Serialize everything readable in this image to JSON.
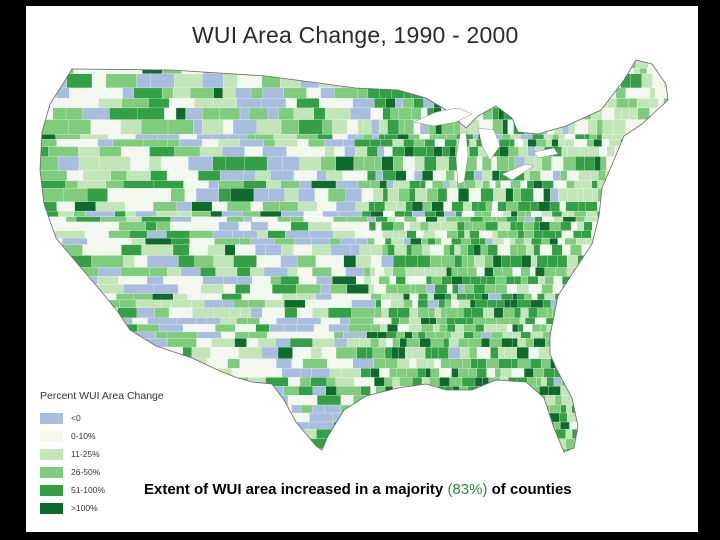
{
  "title": "WUI Area Change, 1990 - 2000",
  "legend": {
    "title": "Percent WUI Area Change",
    "items": [
      {
        "label": "<0",
        "color": "#a8bede"
      },
      {
        "label": "0-10%",
        "color": "#f2f8ee"
      },
      {
        "label": "11-25%",
        "color": "#c3e6b8"
      },
      {
        "label": "26-50%",
        "color": "#7fcc7c"
      },
      {
        "label": "51-100%",
        "color": "#34a046"
      },
      {
        "label": ">100%",
        "color": "#0f6b2b"
      }
    ]
  },
  "caption": {
    "before": "Extent of WUI area increased in a majority ",
    "highlight": "(83%)",
    "after": " of counties"
  }
}
